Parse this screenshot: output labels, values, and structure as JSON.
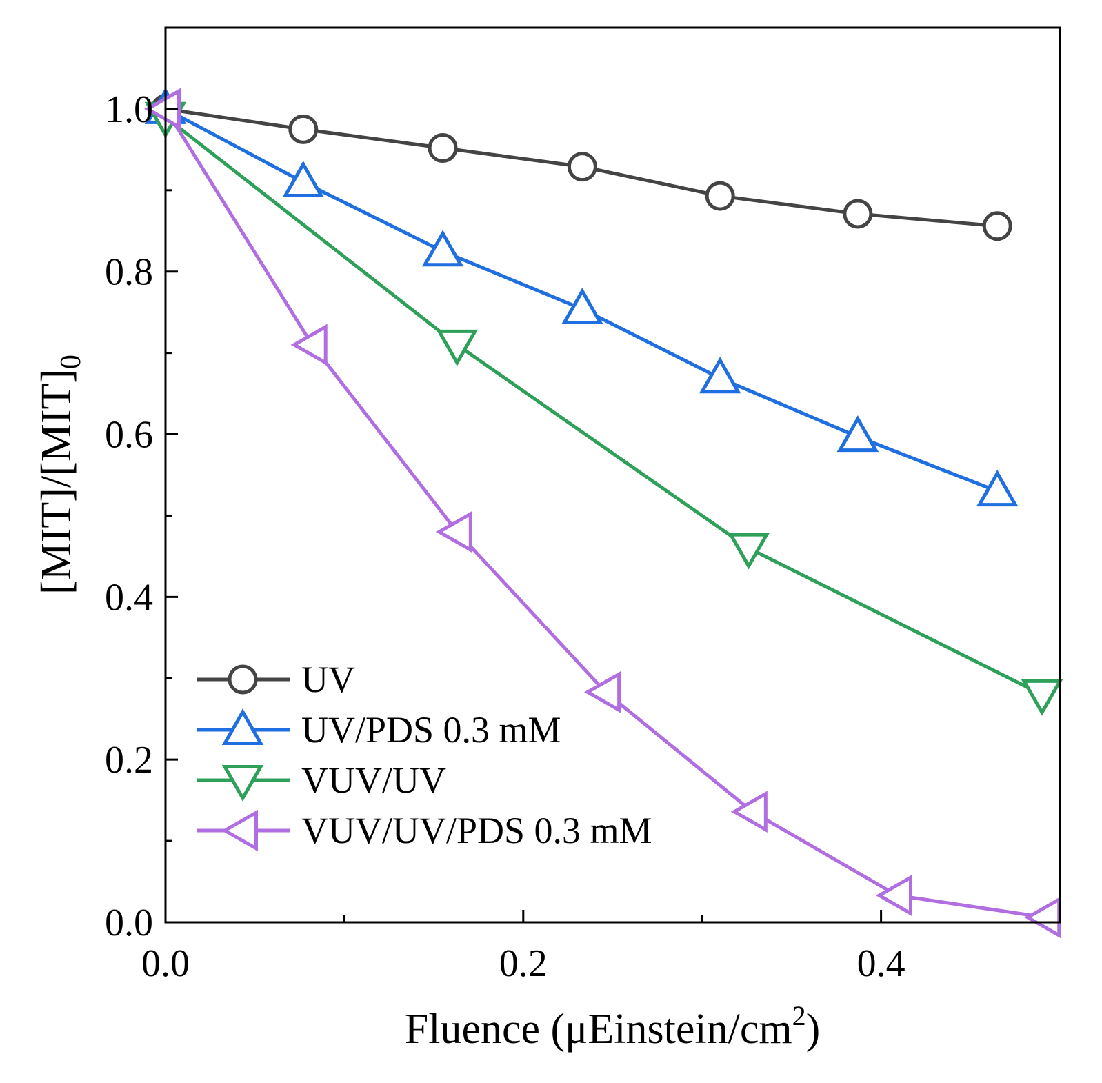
{
  "chart_data": {
    "type": "line",
    "title": "",
    "xlabel": "Fluence (μEinstein/cm",
    "xlabel_sup": "2",
    "xlabel_end": ")",
    "ylabel": "[MIT]/[MIT]",
    "ylabel_sub": "0",
    "xlim": [
      0,
      0.5
    ],
    "ylim": [
      0,
      1.1
    ],
    "xticks": [
      0.0,
      0.2,
      0.4
    ],
    "xtick_labels": [
      "0.0",
      "0.2",
      "0.4"
    ],
    "xminor": [
      0.1,
      0.3,
      0.5
    ],
    "yticks": [
      0.0,
      0.2,
      0.4,
      0.6,
      0.8,
      1.0
    ],
    "ytick_labels": [
      "0.0",
      "0.2",
      "0.4",
      "0.6",
      "0.8",
      "1.0"
    ],
    "yminor": [
      0.1,
      0.3,
      0.5,
      0.7,
      0.9
    ],
    "grid": false,
    "legend_position": "bottom-left",
    "series": [
      {
        "name": "UV",
        "color": "#444444",
        "marker": "circle",
        "x": [
          0,
          0.077,
          0.155,
          0.233,
          0.31,
          0.387,
          0.465
        ],
        "y": [
          1.0,
          0.975,
          0.952,
          0.929,
          0.893,
          0.871,
          0.856
        ]
      },
      {
        "name": "UV/PDS 0.3 mM",
        "color": "#1f6fe0",
        "marker": "triangle-up",
        "x": [
          0,
          0.077,
          0.155,
          0.233,
          0.31,
          0.387,
          0.465
        ],
        "y": [
          1.0,
          0.91,
          0.825,
          0.754,
          0.669,
          0.597,
          0.53
        ]
      },
      {
        "name": "VUV/UV",
        "color": "#2ea05a",
        "marker": "triangle-down",
        "x": [
          0,
          0.163,
          0.326,
          0.49
        ],
        "y": [
          0.99,
          0.71,
          0.46,
          0.28
        ]
      },
      {
        "name": "VUV/UV/PDS 0.3 mM",
        "color": "#b06ee0",
        "marker": "triangle-left",
        "x": [
          0,
          0.082,
          0.163,
          0.246,
          0.328,
          0.409,
          0.492
        ],
        "y": [
          1.0,
          0.71,
          0.48,
          0.283,
          0.136,
          0.033,
          0.006
        ]
      }
    ]
  }
}
